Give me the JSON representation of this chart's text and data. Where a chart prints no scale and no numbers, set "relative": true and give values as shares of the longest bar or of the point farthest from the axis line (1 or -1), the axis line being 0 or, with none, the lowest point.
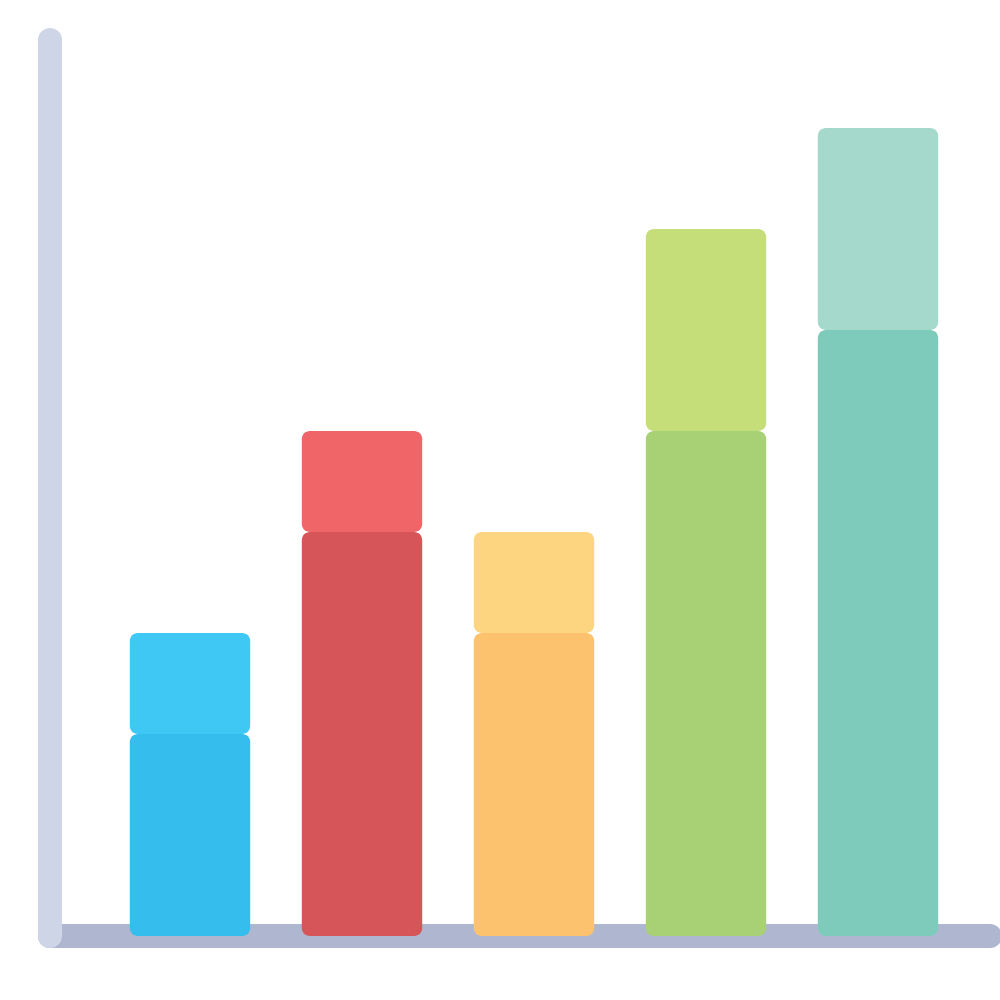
{
  "chart_data": {
    "type": "bar",
    "stacked": true,
    "relative": true,
    "categories": [
      null,
      null,
      null,
      null,
      null
    ],
    "series": [
      {
        "values": [
          0.25,
          0.5,
          0.375,
          0.625,
          0.75
        ],
        "colors": [
          "#35bdee",
          "#d65558",
          "#fdc26e",
          "#a7d174",
          "#7ecbbc"
        ]
      },
      {
        "values": [
          0.125,
          0.125,
          0.125,
          0.25,
          0.25
        ],
        "colors": [
          "#3fc8f4",
          "#f06567",
          "#fdd47f",
          "#c6de7a",
          "#a4d9cc"
        ]
      }
    ]
  }
}
